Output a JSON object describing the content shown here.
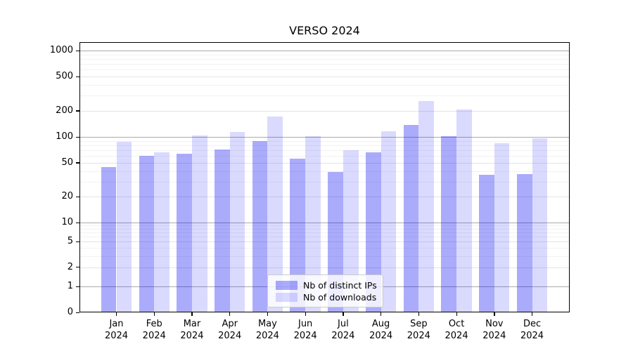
{
  "chart_data": {
    "type": "bar",
    "title": "VERSO 2024",
    "categories": [
      "Jan\n2024",
      "Feb\n2024",
      "Mar\n2024",
      "Apr\n2024",
      "May\n2024",
      "Jun\n2024",
      "Jul\n2024",
      "Aug\n2024",
      "Sep\n2024",
      "Oct\n2024",
      "Nov\n2024",
      "Dec\n2024"
    ],
    "series": [
      {
        "name": "Nb of distinct IPs",
        "color": "rgba(10,10,245,0.34)",
        "values": [
          44,
          60,
          64,
          71,
          90,
          56,
          39,
          66,
          137,
          102,
          36,
          37
        ]
      },
      {
        "name": "Nb of downloads",
        "color": "rgba(10,10,245,0.15)",
        "values": [
          88,
          66,
          104,
          113,
          172,
          101,
          70,
          116,
          258,
          206,
          84,
          96
        ]
      }
    ],
    "y_ticks": [
      0,
      1,
      2,
      5,
      10,
      20,
      50,
      100,
      200,
      500,
      1000
    ],
    "y_scale": "symlog",
    "ylim": [
      0,
      1000
    ],
    "grid": true,
    "legend_position": "lower center",
    "axis_color": "#000000",
    "major_grid_color": "#ababab",
    "minor_grid_color": "#f2f2f2"
  }
}
